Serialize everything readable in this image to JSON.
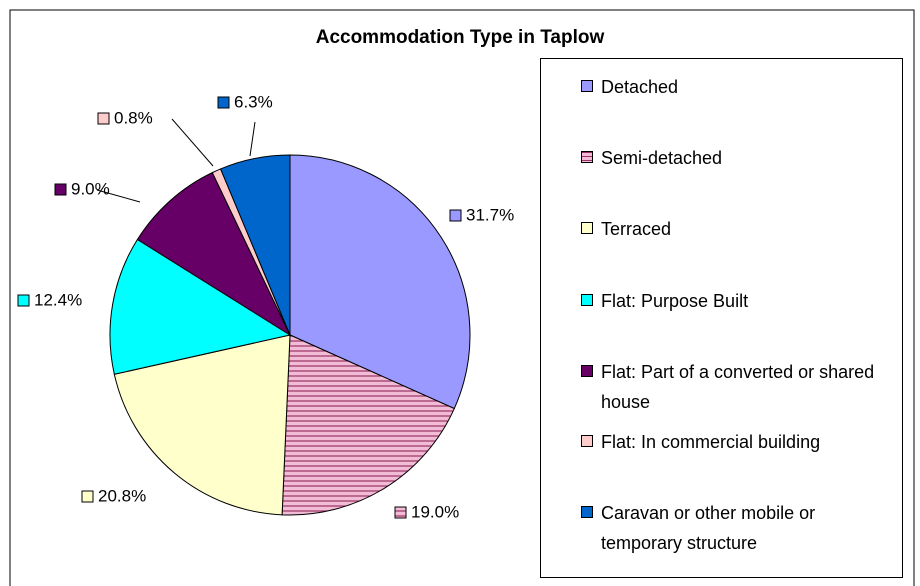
{
  "chart_data": {
    "type": "pie",
    "title": "Accommodation Type in Taplow",
    "categories": [
      "Detached",
      "Semi-detached",
      "Terraced",
      "Flat: Purpose Built",
      "Flat: Part of a converted or shared house",
      "Flat: In commercial building",
      "Caravan or other mobile or temporary structure"
    ],
    "values": [
      31.7,
      19.0,
      20.8,
      12.4,
      9.0,
      0.8,
      6.3
    ],
    "value_labels": [
      "31.7%",
      "19.0%",
      "20.8%",
      "12.4%",
      "9.0%",
      "0.8%",
      "6.3%"
    ],
    "colors": [
      "#9999ff",
      "#f2bcd6",
      "#ffffcc",
      "#00ffff",
      "#660066",
      "#ffcccc",
      "#0066cc"
    ],
    "hatched": [
      false,
      true,
      false,
      false,
      false,
      false,
      false
    ],
    "legend": "right"
  }
}
